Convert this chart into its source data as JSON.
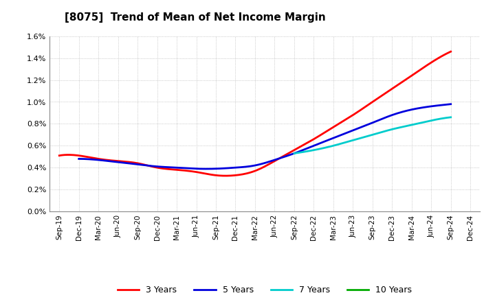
{
  "title": "[8075]  Trend of Mean of Net Income Margin",
  "background_color": "#ffffff",
  "plot_bg_color": "#ffffff",
  "grid_color": "#aaaaaa",
  "ylim": [
    0.0,
    0.016
  ],
  "yticks": [
    0.0,
    0.002,
    0.004,
    0.006,
    0.008,
    0.01,
    0.012,
    0.014,
    0.016
  ],
  "ytick_labels": [
    "0.0%",
    "0.2%",
    "0.4%",
    "0.6%",
    "0.8%",
    "1.0%",
    "1.2%",
    "1.4%",
    "1.6%"
  ],
  "x_labels": [
    "Sep-19",
    "Dec-19",
    "Mar-20",
    "Jun-20",
    "Sep-20",
    "Dec-20",
    "Mar-21",
    "Jun-21",
    "Sep-21",
    "Dec-21",
    "Mar-22",
    "Jun-22",
    "Sep-22",
    "Dec-22",
    "Mar-23",
    "Jun-23",
    "Sep-23",
    "Dec-23",
    "Mar-24",
    "Jun-24",
    "Sep-24",
    "Dec-24"
  ],
  "series": {
    "3 Years": {
      "color": "#ff0000",
      "linewidth": 2.0,
      "knots_x": [
        0,
        1,
        2,
        3,
        4,
        5,
        6,
        7,
        8,
        9,
        10,
        11,
        12,
        13,
        14,
        15,
        16,
        17,
        18,
        19,
        20
      ],
      "knots_y": [
        0.0051,
        0.0051,
        0.0048,
        0.0046,
        0.0044,
        0.004,
        0.0038,
        0.0036,
        0.0033,
        0.0033,
        0.0037,
        0.0046,
        0.0056,
        0.0066,
        0.0077,
        0.0088,
        0.01,
        0.0112,
        0.0124,
        0.0136,
        0.0146
      ]
    },
    "5 Years": {
      "color": "#0000dd",
      "linewidth": 2.0,
      "knots_x": [
        1,
        2,
        3,
        4,
        5,
        6,
        7,
        8,
        9,
        10,
        11,
        12,
        13,
        14,
        15,
        16,
        17,
        18,
        19,
        20
      ],
      "knots_y": [
        0.0048,
        0.0047,
        0.0045,
        0.0043,
        0.0041,
        0.004,
        0.0039,
        0.0039,
        0.004,
        0.0042,
        0.0047,
        0.0053,
        0.006,
        0.0067,
        0.0074,
        0.0081,
        0.0088,
        0.0093,
        0.0096,
        0.0098
      ]
    },
    "7 Years": {
      "color": "#00cccc",
      "linewidth": 2.0,
      "knots_x": [
        12,
        13,
        14,
        15,
        16,
        17,
        18,
        19,
        20
      ],
      "knots_y": [
        0.0053,
        0.0056,
        0.006,
        0.0065,
        0.007,
        0.0075,
        0.0079,
        0.0083,
        0.0086
      ]
    },
    "10 Years": {
      "color": "#00aa00",
      "linewidth": 2.0,
      "knots_x": [],
      "knots_y": []
    }
  }
}
